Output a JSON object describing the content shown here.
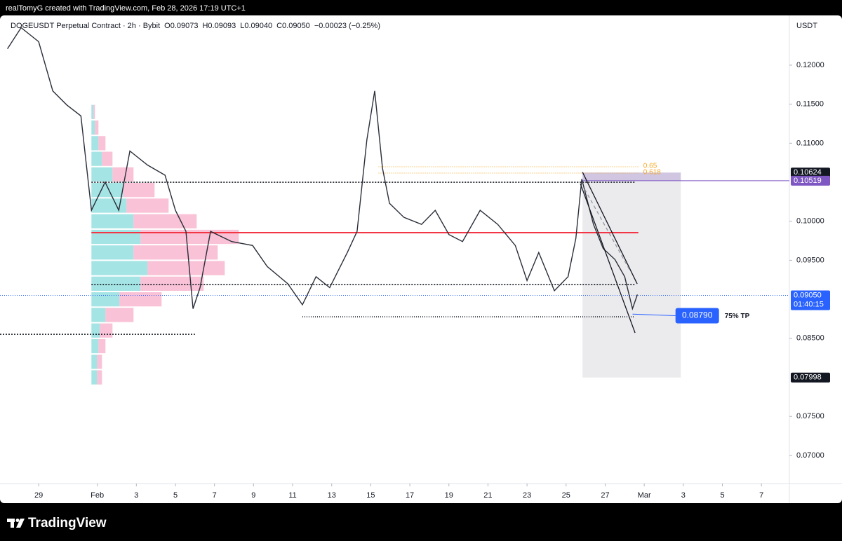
{
  "header": {
    "credit": "realTomyG created with TradingView.com, Feb 28, 2026 17:19 UTC+1"
  },
  "chart_data": {
    "type": "line",
    "title": "DOGEUSDT Perpetual Contract · 2h · Bybit",
    "ohlc_labels": [
      "O0.09073",
      "H0.09093",
      "L0.09040",
      "C0.09050",
      "−0.00023 (−0.25%)"
    ],
    "y_axis_unit": "USDT",
    "x": [
      -1.6,
      -0.9,
      0,
      0.72,
      1.44,
      2.16,
      2.7,
      3.4,
      4.1,
      4.67,
      5.57,
      6.47,
      7.0,
      7.54,
      7.9,
      8.26,
      8.8,
      9.88,
      10.95,
      11.7,
      12.75,
      13.5,
      14.2,
      14.9,
      15.8,
      16.3,
      16.8,
      17.2,
      17.6,
      17.96,
      18.7,
      19.6,
      20.3,
      21.0,
      21.7,
      22.6,
      23.5,
      24.4,
      25.0,
      25.6,
      26.4,
      27.1,
      27.5,
      27.8,
      28.4,
      28.9,
      29.5,
      30.0,
      30.4,
      30.65
    ],
    "series": [
      {
        "color": "#2a2e39",
        "values": [
          0.1221,
          0.1248,
          0.123,
          0.1167,
          0.1149,
          0.1135,
          0.1014,
          0.105,
          0.1014,
          0.109,
          0.1072,
          0.1059,
          0.1014,
          0.0987,
          0.0888,
          0.0915,
          0.0987,
          0.0974,
          0.0969,
          0.0942,
          0.092,
          0.0893,
          0.0929,
          0.0915,
          0.096,
          0.0987,
          0.1104,
          0.1167,
          0.1068,
          0.1023,
          0.1005,
          0.0996,
          0.1014,
          0.0983,
          0.0974,
          0.1014,
          0.0996,
          0.0969,
          0.0924,
          0.096,
          0.0911,
          0.0929,
          0.0978,
          0.1054,
          0.0996,
          0.0965,
          0.0951,
          0.0929,
          0.0888,
          0.0906
        ]
      }
    ],
    "xlim": [
      -1.98,
      38.43
    ],
    "xticks": [
      {
        "value": 0,
        "label": "29"
      },
      {
        "value": 3,
        "label": "Feb"
      },
      {
        "value": 5,
        "label": "3"
      },
      {
        "value": 7,
        "label": "5"
      },
      {
        "value": 9,
        "label": "7"
      },
      {
        "value": 11,
        "label": "9"
      },
      {
        "value": 13,
        "label": "11"
      },
      {
        "value": 15,
        "label": "13"
      },
      {
        "value": 17,
        "label": "15"
      },
      {
        "value": 19,
        "label": "17"
      },
      {
        "value": 21,
        "label": "19"
      },
      {
        "value": 23,
        "label": "21"
      },
      {
        "value": 25,
        "label": "23"
      },
      {
        "value": 27,
        "label": "25"
      },
      {
        "value": 29,
        "label": "27"
      },
      {
        "value": 31,
        "label": "Mar"
      },
      {
        "value": 33,
        "label": "3"
      },
      {
        "value": 35,
        "label": "5"
      },
      {
        "value": 37,
        "label": "7"
      }
    ],
    "ylim": [
      0.0664,
      0.12637
    ],
    "yticks": [
      {
        "value": 0.07,
        "label": "0.07000"
      },
      {
        "value": 0.075,
        "label": "0.07500"
      },
      {
        "value": 0.085,
        "label": "0.08500"
      },
      {
        "value": 0.095,
        "label": "0.09500"
      },
      {
        "value": 0.1,
        "label": "0.10000"
      },
      {
        "value": 0.11,
        "label": "0.11000"
      },
      {
        "value": 0.115,
        "label": "0.11500"
      },
      {
        "value": 0.12,
        "label": "0.12000"
      }
    ],
    "volume_profile": {
      "x": 2.7,
      "prices": [
        0.08,
        0.082,
        0.084,
        0.086,
        0.088,
        0.09,
        0.092,
        0.094,
        0.096,
        0.098,
        0.1,
        0.102,
        0.104,
        0.106,
        0.108,
        0.11,
        0.112,
        0.114
      ],
      "buy": [
        8,
        8,
        10,
        12,
        20,
        40,
        70,
        80,
        60,
        70,
        60,
        50,
        45,
        30,
        15,
        10,
        5,
        3
      ],
      "sell": [
        7,
        7,
        10,
        18,
        40,
        60,
        90,
        110,
        120,
        140,
        90,
        60,
        45,
        30,
        15,
        10,
        5,
        2
      ],
      "buy_color": "#7fd8d8",
      "sell_color": "#f7a8c4"
    },
    "levels": [
      {
        "value": 0.105,
        "x": [
          2.7,
          30.5
        ],
        "color": "#131722",
        "style": "dotted"
      },
      {
        "value": 0.09854,
        "x": [
          2.7,
          30.7
        ],
        "color": "#f23645",
        "style": "solid"
      },
      {
        "value": 0.09189,
        "x": [
          2.7,
          30.5
        ],
        "color": "#131722",
        "style": "dotted"
      },
      {
        "value": 0.08776,
        "x": [
          13.5,
          30.5
        ],
        "color": "#131722",
        "style": "thin-dotted"
      },
      {
        "value": 0.08552,
        "x": [
          -1.98,
          8.0
        ],
        "color": "#131722",
        "style": "dotted"
      }
    ],
    "fib": [
      {
        "value": 0.10698,
        "label": "0.65",
        "x": [
          17.4,
          30.7
        ]
      },
      {
        "value": 0.10617,
        "label": "0.618",
        "x": [
          17.4,
          30.7
        ]
      }
    ],
    "fib_color": "#f5a623",
    "box": {
      "x": [
        27.84,
        32.87
      ],
      "y": [
        0.07998,
        0.10624
      ],
      "top": 0.10519
    },
    "trendlines": [
      {
        "x": [
          27.84,
          30.64
        ],
        "y": [
          0.10629,
          0.09198
        ],
        "style": "solid"
      },
      {
        "x": [
          27.73,
          30.53
        ],
        "y": [
          0.10482,
          0.0857
        ],
        "style": "solid"
      },
      {
        "x": [
          27.95,
          30.25
        ],
        "y": [
          0.10411,
          0.09378
        ],
        "style": "dashed"
      }
    ],
    "current_price": {
      "value": 0.0905,
      "label": "0.09050",
      "countdown": "01:40:15",
      "color": "#2962ff"
    },
    "price_tags": [
      {
        "value": 0.10624,
        "label": "0.10624",
        "color": "#131722"
      },
      {
        "value": 0.10519,
        "label": "0.10519",
        "color": "#7e57c2"
      },
      {
        "value": 0.07998,
        "label": "0.07998",
        "color": "#131722"
      }
    ],
    "target": {
      "from": [
        30.4,
        0.0881
      ],
      "to": 32.6,
      "value": 0.0879,
      "label": "0.08790",
      "note": "75% TP",
      "color": "#2962ff"
    }
  },
  "footer": {
    "brand": "TradingView"
  }
}
